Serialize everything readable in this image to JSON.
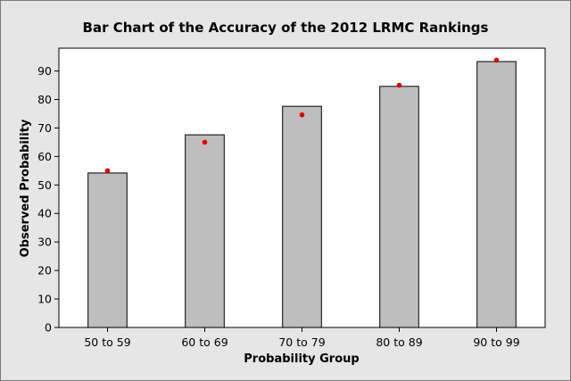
{
  "chart_data": {
    "type": "bar",
    "title": "Bar Chart of the Accuracy of the 2012 LRMC Rankings",
    "xlabel": "Probability Group",
    "ylabel": "Observed Probability",
    "categories": [
      "50 to 59",
      "60 to 69",
      "70 to 79",
      "80 to 89",
      "90 to 99"
    ],
    "series": [
      {
        "type": "bar",
        "values": [
          54.2,
          67.6,
          77.6,
          84.6,
          93.3
        ]
      },
      {
        "type": "point",
        "values": [
          55.0,
          65.0,
          74.6,
          85.0,
          93.8
        ]
      }
    ],
    "ylim": [
      0,
      98
    ],
    "yticks": [
      0,
      10,
      20,
      30,
      40,
      50,
      60,
      70,
      80,
      90
    ],
    "grid": false,
    "colors": {
      "background": "#e6e6e6",
      "plot": "#ffffff",
      "bar": "#bebebe",
      "bar_edge": "#000000",
      "point": "#e00000"
    }
  }
}
